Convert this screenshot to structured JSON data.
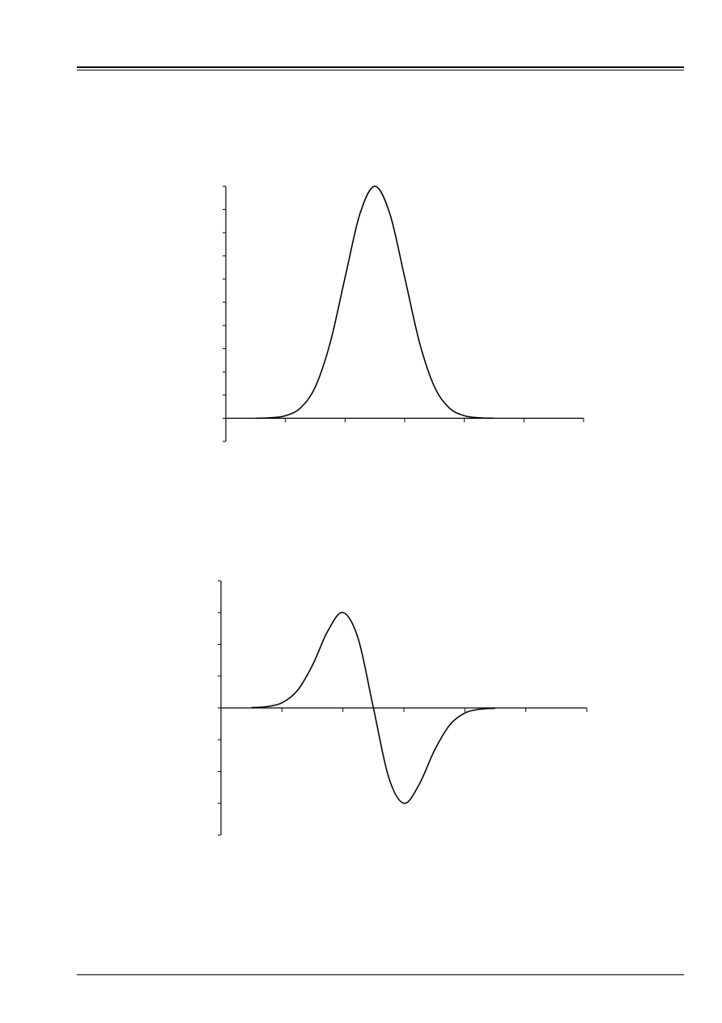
{
  "chart_data": [
    {
      "type": "line",
      "title": "",
      "xlabel": "",
      "ylabel": "",
      "xlim": [
        0,
        6
      ],
      "ylim": [
        -1,
        10
      ],
      "x_ticks": [
        0,
        1,
        2,
        3,
        4,
        5,
        6
      ],
      "y_ticks": [
        -1,
        0,
        1,
        2,
        3,
        4,
        5,
        6,
        7,
        8,
        9,
        10
      ],
      "tick_labels_shown": false,
      "grid": false,
      "line_color": "#000000",
      "series": [
        {
          "x": [
            0.5,
            0.75,
            1.0,
            1.25,
            1.5,
            1.75,
            2.0,
            2.25,
            2.5,
            2.75,
            3.0,
            3.25,
            3.5,
            3.75,
            4.0,
            4.25,
            4.5
          ],
          "y": [
            0.0,
            0.02,
            0.11,
            0.44,
            1.35,
            3.25,
            6.07,
            8.82,
            10.0,
            8.82,
            6.07,
            3.25,
            1.35,
            0.44,
            0.11,
            0.02,
            0.0
          ]
        }
      ]
    },
    {
      "type": "line",
      "title": "",
      "xlabel": "",
      "ylabel": "",
      "xlim": [
        0,
        6
      ],
      "ylim": [
        -4,
        4
      ],
      "x_ticks": [
        0,
        1,
        2,
        3,
        4,
        5,
        6
      ],
      "y_ticks": [
        -4,
        -3,
        -2,
        -1,
        0,
        1,
        2,
        3,
        4
      ],
      "tick_labels_shown": false,
      "grid": false,
      "line_color": "#000000",
      "series": [
        {
          "x": [
            0.5,
            0.75,
            1.0,
            1.25,
            1.5,
            1.75,
            2.0,
            2.25,
            2.5,
            2.75,
            3.0,
            3.25,
            3.5,
            3.75,
            4.0,
            4.25,
            4.5
          ],
          "y": [
            0.01,
            0.04,
            0.16,
            0.54,
            1.34,
            2.41,
            3.0,
            2.18,
            0.0,
            -2.18,
            -3.0,
            -2.41,
            -1.34,
            -0.54,
            -0.16,
            -0.04,
            -0.01
          ]
        }
      ]
    }
  ]
}
